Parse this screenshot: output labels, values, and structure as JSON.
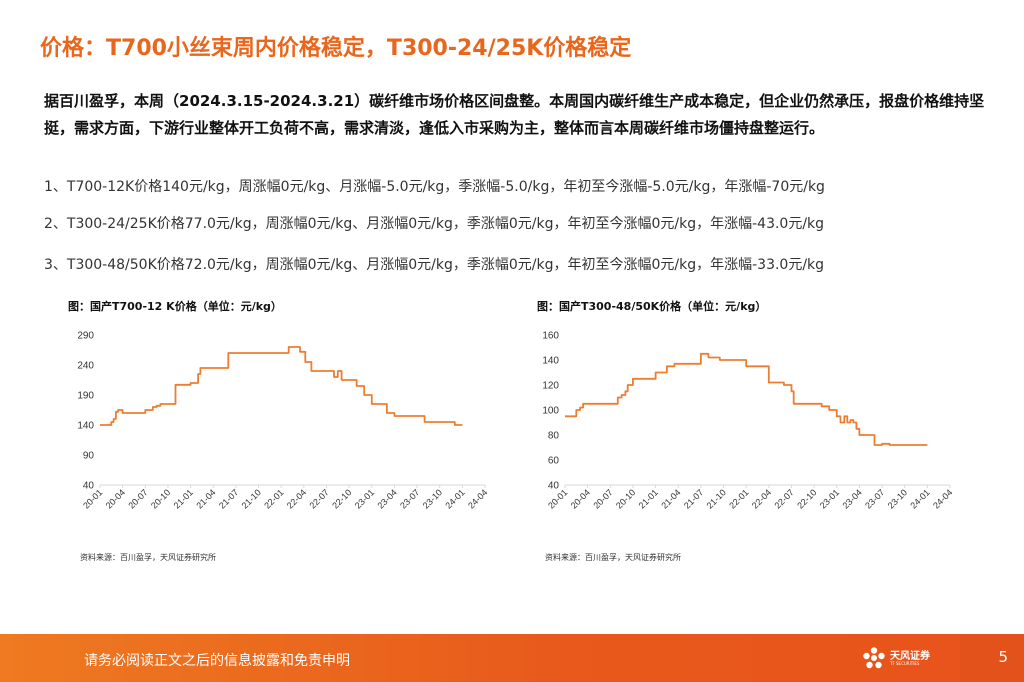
{
  "title": "价格：T700小丝束周内价格稳定，T300-24/25K价格稳定",
  "intro": "据百川盈孚，本周（2024.3.15-2024.3.21）碳纤维市场价格区间盘整。本周国内碳纤维生产成本稳定，但企业仍然承压，报盘价格维持坚挺，需求方面，下游行业整体开工负荷不高，需求清淡，逢低入市采购为主，整体而言本周碳纤维市场僵持盘整运行。",
  "items": [
    "1、T700-12K价格140元/kg，周涨幅0元/kg、月涨幅-5.0元/kg，季涨幅-5.0/kg，年初至今涨幅-5.0元/kg，年涨幅-70元/kg",
    "2、T300-24/25K价格77.0元/kg，周涨幅0元/kg、月涨幅0元/kg，季涨幅0元/kg，年初至今涨幅0元/kg，年涨幅-43.0元/kg",
    "3、T300-48/50K价格72.0元/kg，周涨幅0元/kg、月涨幅0元/kg，季涨幅0元/kg，年初至今涨幅0元/kg，年涨幅-33.0元/kg"
  ],
  "chart_data": [
    {
      "type": "line",
      "title": "图：国产T700-12 K价格（单位：元/kg）",
      "source": "资料来源：百川盈孚，天风证券研究所",
      "ylim": [
        40,
        290
      ],
      "yticks": [
        40,
        90,
        140,
        190,
        240,
        290
      ],
      "xlim": [
        0,
        51
      ],
      "xticks": [
        "20-01",
        "20-04",
        "20-07",
        "20-10",
        "21-01",
        "21-04",
        "21-07",
        "21-10",
        "22-01",
        "22-04",
        "22-07",
        "22-10",
        "23-01",
        "23-04",
        "23-07",
        "23-10",
        "24-01",
        "24-04"
      ],
      "series": [
        {
          "name": "T700-12K",
          "color": "#ed7d31",
          "x": [
            0,
            1.5,
            1.5,
            1.8,
            1.8,
            2.1,
            2.1,
            2.4,
            2.4,
            3.0,
            3.0,
            6.0,
            6.0,
            7.0,
            7.0,
            7.5,
            7.5,
            8.0,
            8.0,
            10.0,
            10.0,
            12.0,
            12.0,
            13.0,
            13.0,
            13.3,
            13.3,
            17.0,
            17.0,
            25.0,
            25.0,
            26.5,
            26.5,
            27.2,
            27.2,
            28.0,
            28.0,
            31.0,
            31.0,
            31.5,
            31.5,
            32.0,
            32.0,
            34.0,
            34.0,
            35.0,
            35.0,
            36.0,
            36.0,
            38.0,
            38.0,
            39.0,
            39.0,
            43.0,
            43.0,
            47.0,
            47.0,
            48.0
          ],
          "y": [
            140,
            140,
            145,
            145,
            150,
            150,
            162,
            162,
            165,
            165,
            160,
            160,
            165,
            165,
            170,
            170,
            172,
            172,
            175,
            175,
            207,
            207,
            210,
            210,
            225,
            225,
            235,
            235,
            260,
            260,
            270,
            270,
            262,
            262,
            245,
            245,
            230,
            230,
            220,
            220,
            230,
            230,
            215,
            215,
            205,
            205,
            190,
            190,
            175,
            175,
            160,
            160,
            155,
            155,
            145,
            145,
            140,
            140
          ]
        }
      ]
    },
    {
      "type": "line",
      "title": "图：国产T300-48/50K价格（单位：元/kg）",
      "source": "资料来源：百川盈孚，天风证券研究所",
      "ylim": [
        40,
        160
      ],
      "yticks": [
        40,
        60,
        80,
        100,
        120,
        140,
        160
      ],
      "xlim": [
        0,
        51
      ],
      "xticks": [
        "20-01",
        "20-04",
        "20-07",
        "20-10",
        "21-01",
        "21-04",
        "21-07",
        "21-10",
        "22-01",
        "22-04",
        "22-07",
        "22-10",
        "23-01",
        "23-04",
        "23-07",
        "23-10",
        "24-01",
        "24-04"
      ],
      "series": [
        {
          "name": "T300-48/50K",
          "color": "#ed7d31",
          "x": [
            0,
            1.5,
            1.5,
            2.0,
            2.0,
            2.4,
            2.4,
            7.0,
            7.0,
            7.5,
            7.5,
            8.0,
            8.0,
            8.3,
            8.3,
            9.0,
            9.0,
            12.0,
            12.0,
            13.5,
            13.5,
            14.5,
            14.5,
            18.0,
            18.0,
            19.0,
            19.0,
            20.5,
            20.5,
            24.0,
            24.0,
            27.0,
            27.0,
            29.0,
            29.0,
            30.0,
            30.0,
            30.3,
            30.3,
            34.0,
            34.0,
            35.0,
            35.0,
            36.0,
            36.0,
            36.5,
            36.5,
            37.0,
            37.0,
            37.4,
            37.4,
            37.8,
            37.8,
            38.2,
            38.2,
            38.6,
            38.6,
            39.0,
            39.0,
            41.0,
            41.0,
            42.0,
            42.0,
            43.0,
            43.0,
            43.3,
            43.3,
            45.0,
            45.0,
            48.0
          ],
          "y": [
            95,
            95,
            100,
            100,
            102,
            102,
            105,
            105,
            110,
            110,
            112,
            112,
            115,
            115,
            120,
            120,
            125,
            125,
            130,
            130,
            135,
            135,
            137,
            137,
            145,
            145,
            142,
            142,
            140,
            140,
            135,
            135,
            122,
            122,
            120,
            120,
            115,
            115,
            105,
            105,
            103,
            103,
            100,
            100,
            95,
            95,
            90,
            90,
            95,
            95,
            90,
            90,
            92,
            92,
            90,
            90,
            85,
            85,
            80,
            80,
            72,
            72,
            73,
            73,
            72,
            72,
            72,
            72,
            72,
            72
          ]
        }
      ]
    }
  ],
  "footer": {
    "disclaimer": "请务必阅读正文之后的信息披露和免责申明",
    "logo_name": "天风证券",
    "logo_sub": "TF SECURITIES",
    "page_number": "5"
  }
}
